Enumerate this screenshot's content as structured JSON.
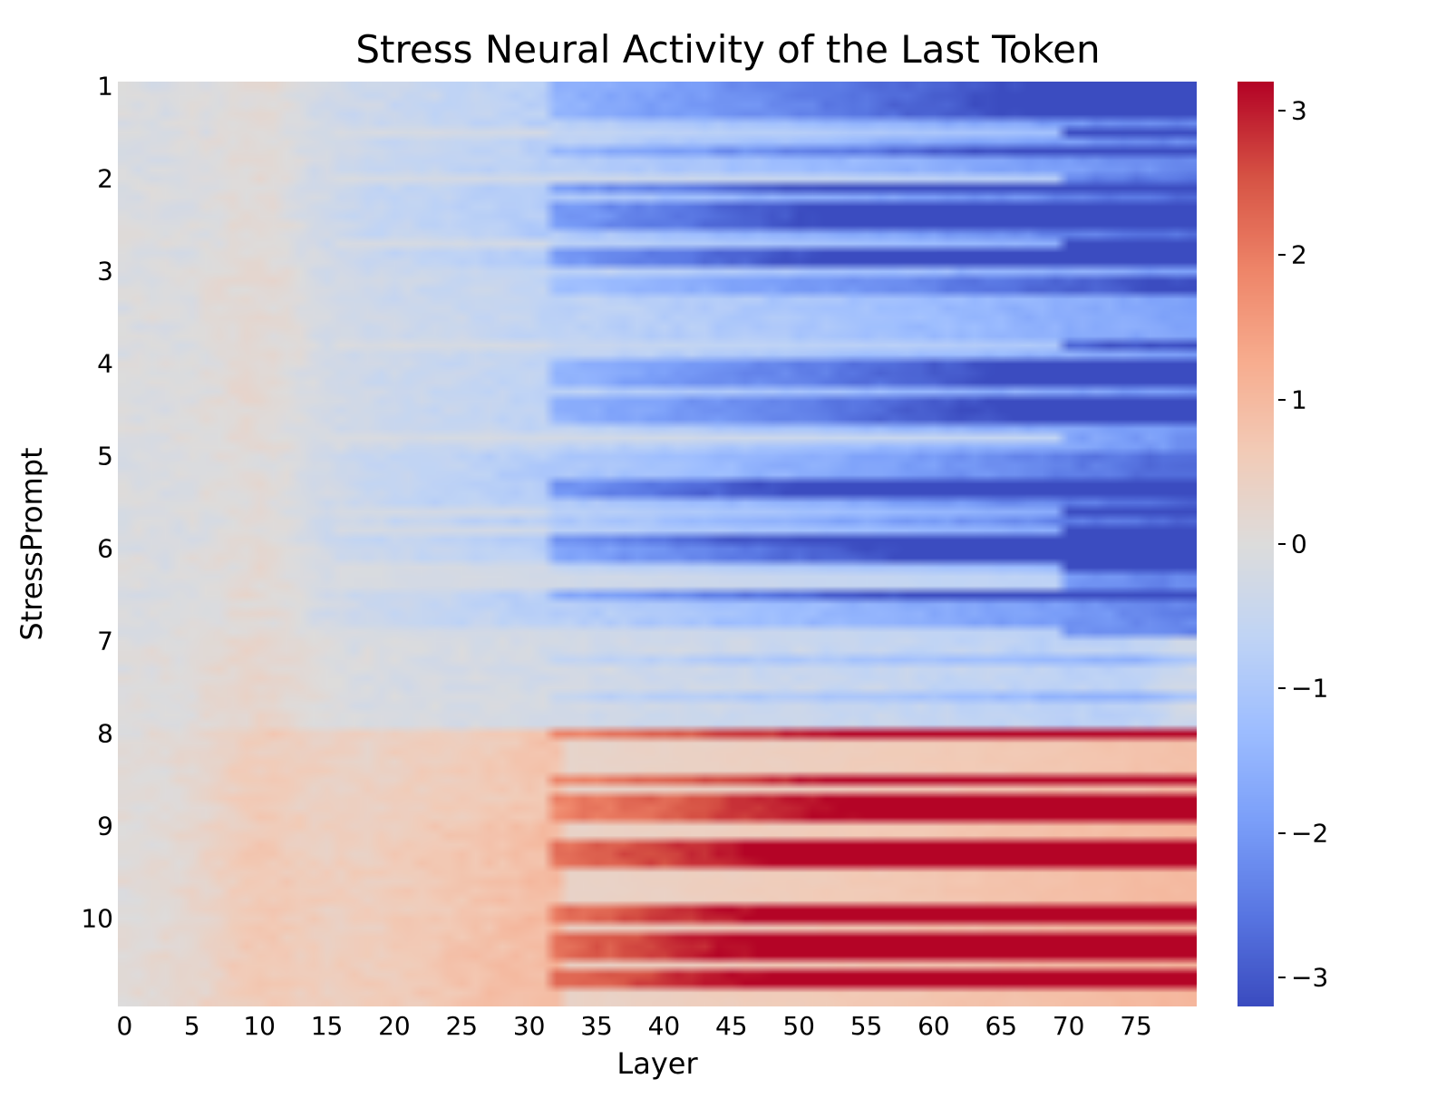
{
  "chart": {
    "type": "heatmap",
    "title": "Stress Neural Activity of the Last Token",
    "title_fontsize": 42,
    "xlabel": "Layer",
    "ylabel": "StressPrompt",
    "label_fontsize": 32,
    "tick_fontsize": 28,
    "background_color": "#ffffff",
    "text_color": "#000000",
    "x_range": [
      0,
      79
    ],
    "y_range": [
      1,
      10
    ],
    "n_rows": 100,
    "n_cols": 80,
    "x_ticks": [
      0,
      5,
      10,
      15,
      20,
      25,
      30,
      35,
      40,
      45,
      50,
      55,
      60,
      65,
      70,
      75
    ],
    "y_ticks": [
      1,
      2,
      3,
      4,
      5,
      6,
      7,
      8,
      9,
      10
    ],
    "y_group_size": 10,
    "value_range": [
      -3.2,
      3.2
    ],
    "colorbar": {
      "ticks": [
        -3,
        -2,
        -1,
        0,
        1,
        2,
        3
      ],
      "vmin": -3.2,
      "vmax": 3.2
    },
    "colormap": {
      "name": "coolwarm",
      "stops": [
        [
          0.0,
          "#3b4cc0"
        ],
        [
          0.1,
          "#5977e3"
        ],
        [
          0.2,
          "#7b9ff9"
        ],
        [
          0.3,
          "#9ebeff"
        ],
        [
          0.4,
          "#c0d4f5"
        ],
        [
          0.5,
          "#dddcdc"
        ],
        [
          0.6,
          "#f2cbb7"
        ],
        [
          0.7,
          "#f7ac8e"
        ],
        [
          0.8,
          "#ee8468"
        ],
        [
          0.9,
          "#d65244"
        ],
        [
          1.0,
          "#b40426"
        ]
      ]
    },
    "pattern": {
      "description": "Heatmap where rows 1-7 (groups) trend from neutral-light at low layers to increasingly blue (negative) at higher layers, with strong dark-blue streaks in groups 2 and 5-6 in the 35-78 layer range. Rows 7-10 transition to red (positive) with strong dark-red bands in 8-10 starting around layer 35 through 78. A faint warm vertical band appears around layer 10 across all rows.",
      "warm_band_layer": 10,
      "warm_band_width": 3,
      "warm_band_strength": 0.35,
      "group_profiles": [
        {
          "group": 1,
          "base": -0.3,
          "slope": -2.2,
          "streak_intensity": 0.6,
          "streak_prob": 0.45
        },
        {
          "group": 2,
          "base": -0.3,
          "slope": -2.6,
          "streak_intensity": 0.9,
          "streak_prob": 0.5
        },
        {
          "group": 3,
          "base": -0.2,
          "slope": -1.8,
          "streak_intensity": 0.5,
          "streak_prob": 0.35
        },
        {
          "group": 4,
          "base": -0.2,
          "slope": -2.0,
          "streak_intensity": 0.7,
          "streak_prob": 0.45
        },
        {
          "group": 5,
          "base": -0.3,
          "slope": -2.7,
          "streak_intensity": 0.95,
          "streak_prob": 0.6
        },
        {
          "group": 6,
          "base": -0.2,
          "slope": -2.3,
          "streak_intensity": 0.8,
          "streak_prob": 0.45
        },
        {
          "group": 7,
          "base": 0.0,
          "slope": -0.8,
          "streak_intensity": 0.3,
          "streak_prob": 0.25
        },
        {
          "group": 8,
          "base": 0.2,
          "slope": 2.4,
          "streak_intensity": 0.9,
          "streak_prob": 0.5
        },
        {
          "group": 9,
          "base": 0.3,
          "slope": 2.8,
          "streak_intensity": 1.0,
          "streak_prob": 0.6
        },
        {
          "group": 10,
          "base": 0.35,
          "slope": 2.9,
          "streak_intensity": 1.0,
          "streak_prob": 0.65
        }
      ],
      "streak_start_layer": 32,
      "noise_amplitude": 0.25
    }
  }
}
